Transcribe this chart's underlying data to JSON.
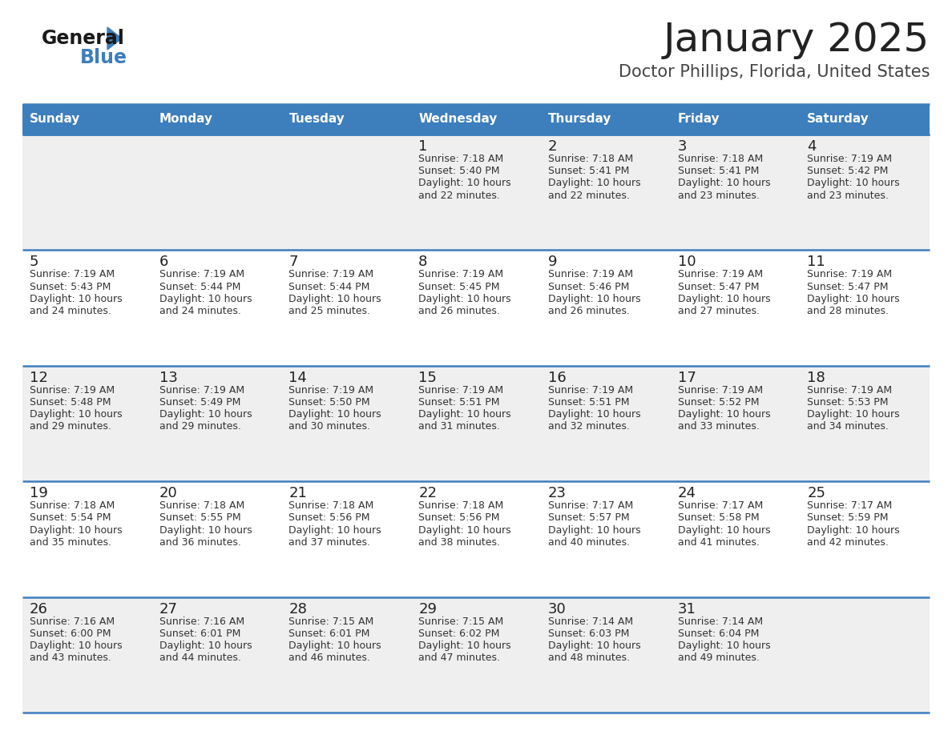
{
  "title": "January 2025",
  "subtitle": "Doctor Phillips, Florida, United States",
  "days_of_week": [
    "Sunday",
    "Monday",
    "Tuesday",
    "Wednesday",
    "Thursday",
    "Friday",
    "Saturday"
  ],
  "header_bg": "#3D7EBD",
  "header_text": "#FFFFFF",
  "row_bg_odd": "#EFEFEF",
  "row_bg_even": "#FFFFFF",
  "cell_text_color": "#333333",
  "day_num_color": "#222222",
  "border_color": "#3D7EBD",
  "title_color": "#222222",
  "subtitle_color": "#444444",
  "logo_text_general": "General",
  "logo_text_blue": "Blue",
  "logo_triangle_color": "#3D7EBD",
  "calendar_data": [
    [
      {
        "day": "",
        "sunrise": "",
        "sunset": "",
        "daylight": ""
      },
      {
        "day": "",
        "sunrise": "",
        "sunset": "",
        "daylight": ""
      },
      {
        "day": "",
        "sunrise": "",
        "sunset": "",
        "daylight": ""
      },
      {
        "day": "1",
        "sunrise": "7:18 AM",
        "sunset": "5:40 PM",
        "daylight": "10 hours",
        "daylight2": "and 22 minutes."
      },
      {
        "day": "2",
        "sunrise": "7:18 AM",
        "sunset": "5:41 PM",
        "daylight": "10 hours",
        "daylight2": "and 22 minutes."
      },
      {
        "day": "3",
        "sunrise": "7:18 AM",
        "sunset": "5:41 PM",
        "daylight": "10 hours",
        "daylight2": "and 23 minutes."
      },
      {
        "day": "4",
        "sunrise": "7:19 AM",
        "sunset": "5:42 PM",
        "daylight": "10 hours",
        "daylight2": "and 23 minutes."
      }
    ],
    [
      {
        "day": "5",
        "sunrise": "7:19 AM",
        "sunset": "5:43 PM",
        "daylight": "10 hours",
        "daylight2": "and 24 minutes."
      },
      {
        "day": "6",
        "sunrise": "7:19 AM",
        "sunset": "5:44 PM",
        "daylight": "10 hours",
        "daylight2": "and 24 minutes."
      },
      {
        "day": "7",
        "sunrise": "7:19 AM",
        "sunset": "5:44 PM",
        "daylight": "10 hours",
        "daylight2": "and 25 minutes."
      },
      {
        "day": "8",
        "sunrise": "7:19 AM",
        "sunset": "5:45 PM",
        "daylight": "10 hours",
        "daylight2": "and 26 minutes."
      },
      {
        "day": "9",
        "sunrise": "7:19 AM",
        "sunset": "5:46 PM",
        "daylight": "10 hours",
        "daylight2": "and 26 minutes."
      },
      {
        "day": "10",
        "sunrise": "7:19 AM",
        "sunset": "5:47 PM",
        "daylight": "10 hours",
        "daylight2": "and 27 minutes."
      },
      {
        "day": "11",
        "sunrise": "7:19 AM",
        "sunset": "5:47 PM",
        "daylight": "10 hours",
        "daylight2": "and 28 minutes."
      }
    ],
    [
      {
        "day": "12",
        "sunrise": "7:19 AM",
        "sunset": "5:48 PM",
        "daylight": "10 hours",
        "daylight2": "and 29 minutes."
      },
      {
        "day": "13",
        "sunrise": "7:19 AM",
        "sunset": "5:49 PM",
        "daylight": "10 hours",
        "daylight2": "and 29 minutes."
      },
      {
        "day": "14",
        "sunrise": "7:19 AM",
        "sunset": "5:50 PM",
        "daylight": "10 hours",
        "daylight2": "and 30 minutes."
      },
      {
        "day": "15",
        "sunrise": "7:19 AM",
        "sunset": "5:51 PM",
        "daylight": "10 hours",
        "daylight2": "and 31 minutes."
      },
      {
        "day": "16",
        "sunrise": "7:19 AM",
        "sunset": "5:51 PM",
        "daylight": "10 hours",
        "daylight2": "and 32 minutes."
      },
      {
        "day": "17",
        "sunrise": "7:19 AM",
        "sunset": "5:52 PM",
        "daylight": "10 hours",
        "daylight2": "and 33 minutes."
      },
      {
        "day": "18",
        "sunrise": "7:19 AM",
        "sunset": "5:53 PM",
        "daylight": "10 hours",
        "daylight2": "and 34 minutes."
      }
    ],
    [
      {
        "day": "19",
        "sunrise": "7:18 AM",
        "sunset": "5:54 PM",
        "daylight": "10 hours",
        "daylight2": "and 35 minutes."
      },
      {
        "day": "20",
        "sunrise": "7:18 AM",
        "sunset": "5:55 PM",
        "daylight": "10 hours",
        "daylight2": "and 36 minutes."
      },
      {
        "day": "21",
        "sunrise": "7:18 AM",
        "sunset": "5:56 PM",
        "daylight": "10 hours",
        "daylight2": "and 37 minutes."
      },
      {
        "day": "22",
        "sunrise": "7:18 AM",
        "sunset": "5:56 PM",
        "daylight": "10 hours",
        "daylight2": "and 38 minutes."
      },
      {
        "day": "23",
        "sunrise": "7:17 AM",
        "sunset": "5:57 PM",
        "daylight": "10 hours",
        "daylight2": "and 40 minutes."
      },
      {
        "day": "24",
        "sunrise": "7:17 AM",
        "sunset": "5:58 PM",
        "daylight": "10 hours",
        "daylight2": "and 41 minutes."
      },
      {
        "day": "25",
        "sunrise": "7:17 AM",
        "sunset": "5:59 PM",
        "daylight": "10 hours",
        "daylight2": "and 42 minutes."
      }
    ],
    [
      {
        "day": "26",
        "sunrise": "7:16 AM",
        "sunset": "6:00 PM",
        "daylight": "10 hours",
        "daylight2": "and 43 minutes."
      },
      {
        "day": "27",
        "sunrise": "7:16 AM",
        "sunset": "6:01 PM",
        "daylight": "10 hours",
        "daylight2": "and 44 minutes."
      },
      {
        "day": "28",
        "sunrise": "7:15 AM",
        "sunset": "6:01 PM",
        "daylight": "10 hours",
        "daylight2": "and 46 minutes."
      },
      {
        "day": "29",
        "sunrise": "7:15 AM",
        "sunset": "6:02 PM",
        "daylight": "10 hours",
        "daylight2": "and 47 minutes."
      },
      {
        "day": "30",
        "sunrise": "7:14 AM",
        "sunset": "6:03 PM",
        "daylight": "10 hours",
        "daylight2": "and 48 minutes."
      },
      {
        "day": "31",
        "sunrise": "7:14 AM",
        "sunset": "6:04 PM",
        "daylight": "10 hours",
        "daylight2": "and 49 minutes."
      },
      {
        "day": "",
        "sunrise": "",
        "sunset": "",
        "daylight": "",
        "daylight2": ""
      }
    ]
  ]
}
